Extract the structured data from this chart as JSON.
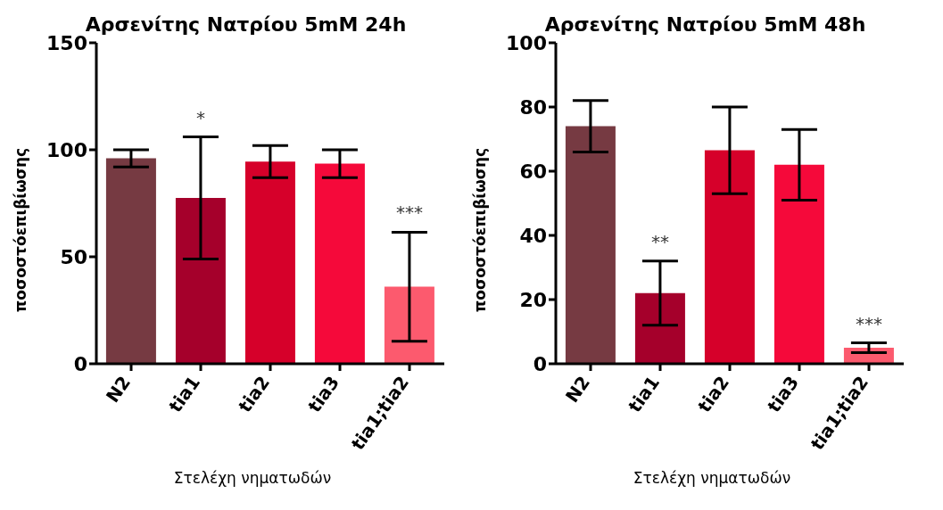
{
  "chart_data": [
    {
      "type": "bar",
      "title": "Αρσενίτης Νατρίου 5mM 24h",
      "xlabel": "Στελέχη νηματωδών",
      "ylabel": "ποσοστόεπιβίωσης",
      "categories": [
        "N2",
        "tia1",
        "tia2",
        "tia3",
        "tia1;tia2"
      ],
      "values": [
        96,
        77.5,
        94.5,
        93.5,
        36
      ],
      "errors": [
        4,
        28.5,
        7.5,
        6.5,
        25.5
      ],
      "colors": [
        "#763a42",
        "#a5002b",
        "#d6002a",
        "#f5093a",
        "#fc5a6e"
      ],
      "ylim": [
        0,
        150
      ],
      "yticks": [
        0,
        50,
        100,
        150
      ],
      "grid": false,
      "legend": false,
      "annotations": [
        {
          "text": "*",
          "x": "tia1",
          "y": 106
        },
        {
          "text": "***",
          "x": "tia1;tia2",
          "y": 61.5
        }
      ]
    },
    {
      "type": "bar",
      "title": "Αρσενίτης Νατρίου 5mM 48h",
      "xlabel": "Στελέχη νηματωδών",
      "ylabel": "ποσοστόεπιβίωσης",
      "categories": [
        "N2",
        "tia1",
        "tia2",
        "tia3",
        "tia1;tia2"
      ],
      "values": [
        74,
        22,
        66.5,
        62,
        5
      ],
      "errors": [
        8,
        10,
        13.5,
        11,
        1.5
      ],
      "colors": [
        "#763a42",
        "#a5002b",
        "#d6002a",
        "#f5093a",
        "#fc5a6e"
      ],
      "ylim": [
        0,
        100
      ],
      "yticks": [
        0,
        20,
        40,
        60,
        80,
        100
      ],
      "grid": false,
      "legend": false,
      "annotations": [
        {
          "text": "**",
          "x": "tia1",
          "y": 32
        },
        {
          "text": "***",
          "x": "tia1;tia2",
          "y": 6.5
        }
      ]
    }
  ]
}
